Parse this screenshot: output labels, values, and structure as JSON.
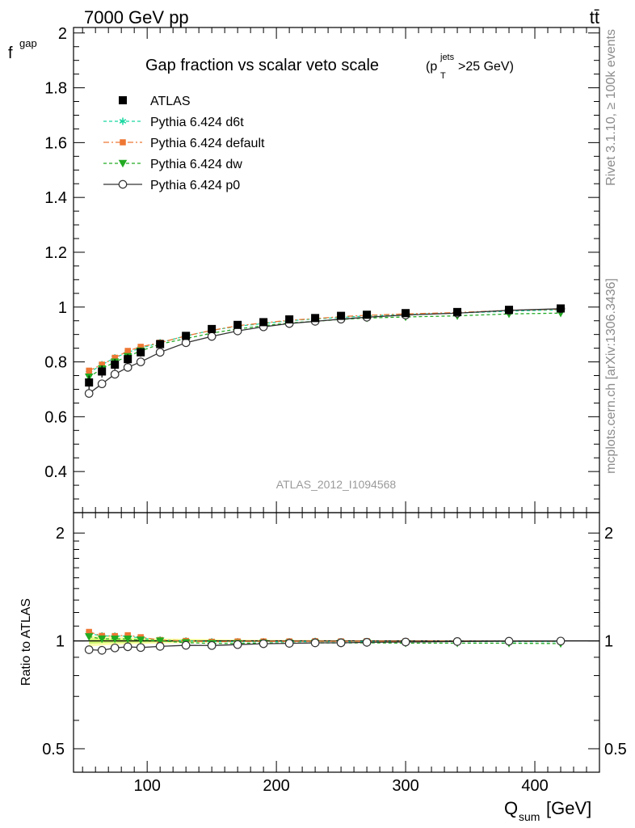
{
  "header": {
    "energy_label": "7000 GeV pp",
    "process_label": "tt̄"
  },
  "side_text": {
    "rivet": "Rivet 3.1.10, ≥ 100k events",
    "source": "mcplots.cern.ch [arXiv:1306.3436]"
  },
  "watermark": "ATLAS_2012_I1094568",
  "chart_data": {
    "type": "line",
    "title": "Gap fraction vs scalar veto scale",
    "title_cut": {
      "pre": "(p",
      "sup": "jets",
      "sub": "T",
      "post": ">25 GeV)"
    },
    "ylabel": {
      "main": "f",
      "sub": "gap"
    },
    "xlabel": {
      "main": "Q",
      "sub": "sum",
      "unit": " [GeV]"
    },
    "ratio_ylabel": "Ratio to ATLAS",
    "xlim": [
      43,
      450
    ],
    "ylim": [
      0.25,
      2.02
    ],
    "ratio_ylim": [
      0.43,
      2.28
    ],
    "x_ticks": [
      "100",
      "200",
      "300",
      "400"
    ],
    "y_ticks": [
      "0.4",
      "0.6",
      "0.8",
      "1",
      "1.2",
      "1.4",
      "1.6",
      "1.8",
      "2"
    ],
    "ratio_ticks": [
      "0.5",
      "1",
      "2"
    ],
    "ratio_ticks_right": [
      "0.5",
      "1",
      "2"
    ],
    "x": [
      55,
      65,
      75,
      85,
      95,
      110,
      130,
      150,
      170,
      190,
      210,
      230,
      250,
      270,
      300,
      340,
      380,
      420
    ],
    "series": [
      {
        "name": "ATLAS",
        "color": "#000000",
        "marker": "square",
        "values": [
          0.725,
          0.765,
          0.79,
          0.81,
          0.835,
          0.865,
          0.895,
          0.92,
          0.935,
          0.945,
          0.955,
          0.96,
          0.968,
          0.972,
          0.978,
          0.982,
          0.99,
          0.995
        ],
        "errors": [
          0.025,
          0.022,
          0.02,
          0.018,
          0.016,
          0.014,
          0.012,
          0.01,
          0.008,
          0.007,
          0.006,
          0.006,
          0.005,
          0.005,
          0.004,
          0.004,
          0.003,
          0.003
        ]
      },
      {
        "name": "Pythia 6.424 d6t",
        "color": "#17d7a0",
        "marker": "star",
        "dash": "4,3",
        "values": [
          0.76,
          0.79,
          0.815,
          0.835,
          0.85,
          0.87,
          0.895,
          0.915,
          0.93,
          0.94,
          0.95,
          0.957,
          0.962,
          0.968,
          0.973,
          0.978,
          0.985,
          0.99
        ]
      },
      {
        "name": "Pythia 6.424 default",
        "color": "#ee7733",
        "marker": "square-small",
        "dash": "7,3,2,3",
        "values": [
          0.768,
          0.79,
          0.815,
          0.84,
          0.855,
          0.87,
          0.895,
          0.915,
          0.932,
          0.942,
          0.952,
          0.958,
          0.965,
          0.97,
          0.975,
          0.98,
          0.988,
          0.992
        ]
      },
      {
        "name": "Pythia 6.424 dw",
        "color": "#22aa22",
        "marker": "triangle-down",
        "dash": "4,3",
        "values": [
          0.745,
          0.775,
          0.8,
          0.82,
          0.84,
          0.865,
          0.885,
          0.905,
          0.92,
          0.932,
          0.942,
          0.948,
          0.955,
          0.96,
          0.964,
          0.968,
          0.975,
          0.978
        ]
      },
      {
        "name": "Pythia 6.424 p0",
        "color": "#333333",
        "marker": "circle-open",
        "dash": "",
        "values": [
          0.685,
          0.72,
          0.755,
          0.78,
          0.8,
          0.835,
          0.87,
          0.893,
          0.913,
          0.928,
          0.94,
          0.948,
          0.956,
          0.963,
          0.971,
          0.978,
          0.988,
          0.994
        ]
      }
    ],
    "legend_position": "top-left"
  }
}
